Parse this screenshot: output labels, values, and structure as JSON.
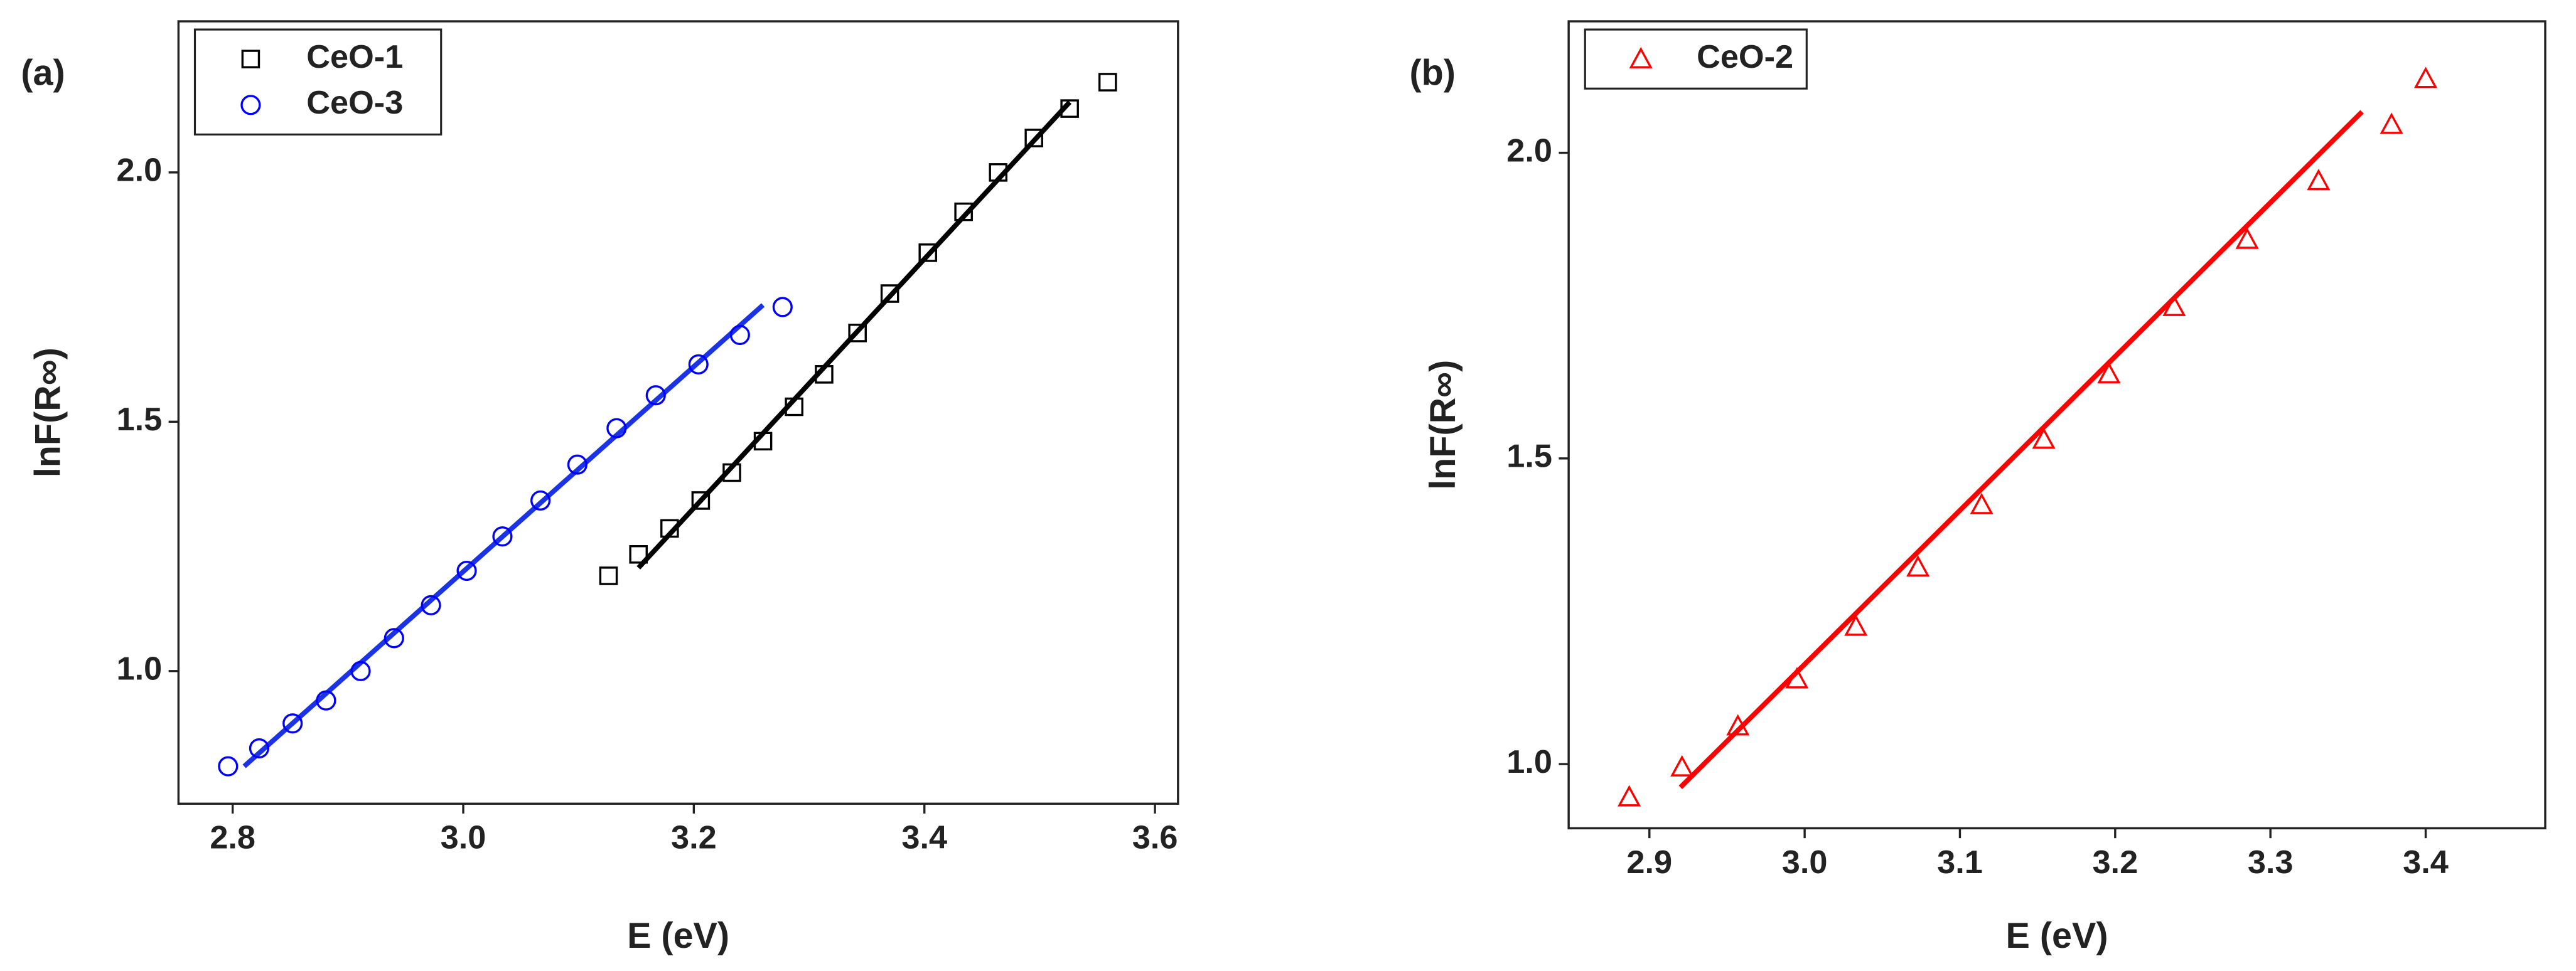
{
  "chart_data": [
    {
      "type": "scatter",
      "panel_label": "(a)",
      "x_label": "E (eV)",
      "y_label": "lnF(R∞)",
      "xlim": [
        2.753,
        3.62
      ],
      "ylim": [
        0.734,
        2.303
      ],
      "xticks": [
        2.8,
        {
          "value": 3.0,
          "label": "3.0"
        },
        3.2,
        3.4,
        3.6
      ],
      "yticks": [
        {
          "value": 1.0,
          "label": "1.0"
        },
        1.5,
        {
          "value": 2.0,
          "label": "2.0"
        }
      ],
      "legend": "top-left",
      "series": [
        {
          "name": "CeO-1",
          "color": "#000000",
          "marker": "square",
          "x": [
            3.126,
            3.152,
            3.179,
            3.206,
            3.233,
            3.26,
            3.287,
            3.313,
            3.342,
            3.37,
            3.403,
            3.434,
            3.464,
            3.495,
            3.526,
            3.559
          ],
          "values": [
            1.191,
            1.234,
            1.286,
            1.342,
            1.398,
            1.461,
            1.53,
            1.595,
            1.678,
            1.757,
            1.839,
            1.921,
            2.0,
            2.069,
            2.128,
            2.181
          ]
        },
        {
          "name": "CeO-3",
          "color": "#0000ff",
          "marker": "circle",
          "x": [
            2.796,
            2.823,
            2.852,
            2.881,
            2.911,
            2.94,
            2.972,
            3.003,
            3.034,
            3.067,
            3.099,
            3.133,
            3.167,
            3.204,
            3.24,
            3.277
          ],
          "values": [
            0.809,
            0.845,
            0.895,
            0.941,
            1.0,
            1.066,
            1.132,
            1.201,
            1.27,
            1.342,
            1.414,
            1.487,
            1.553,
            1.615,
            1.674,
            1.73
          ]
        }
      ],
      "fits": [
        {
          "color": "#000000",
          "x": [
            3.152,
            3.526
          ],
          "values": [
            1.207,
            2.141
          ]
        },
        {
          "color": "#1a33e6",
          "x": [
            2.81,
            3.26
          ],
          "values": [
            0.809,
            1.734
          ]
        }
      ]
    },
    {
      "type": "scatter",
      "panel_label": "(b)",
      "x_label": "E (eV)",
      "y_label": "lnF(R∞)",
      "xlim": [
        2.848,
        3.477
      ],
      "ylim": [
        0.895,
        2.215
      ],
      "xticks": [
        2.9,
        {
          "value": 3.0,
          "label": "3.0"
        },
        3.1,
        3.2,
        3.3,
        3.4
      ],
      "yticks": [
        {
          "value": 1.0,
          "label": "1.0"
        },
        1.5,
        {
          "value": 2.0,
          "label": "2.0"
        }
      ],
      "legend": "top-left",
      "series": [
        {
          "name": "CeO-2",
          "color": "#ff0000",
          "marker": "triangle",
          "x": [
            2.887,
            2.921,
            2.957,
            2.995,
            3.033,
            3.073,
            3.114,
            3.154,
            3.196,
            3.238,
            3.285,
            3.331,
            3.378,
            3.4
          ],
          "values": [
            0.946,
            0.995,
            1.062,
            1.139,
            1.225,
            1.322,
            1.424,
            1.531,
            1.638,
            1.748,
            1.858,
            1.954,
            2.046,
            2.121
          ]
        }
      ],
      "fits": [
        {
          "color": "#ff0000",
          "x": [
            2.92,
            3.359
          ],
          "values": [
            0.962,
            2.067
          ]
        }
      ]
    }
  ]
}
